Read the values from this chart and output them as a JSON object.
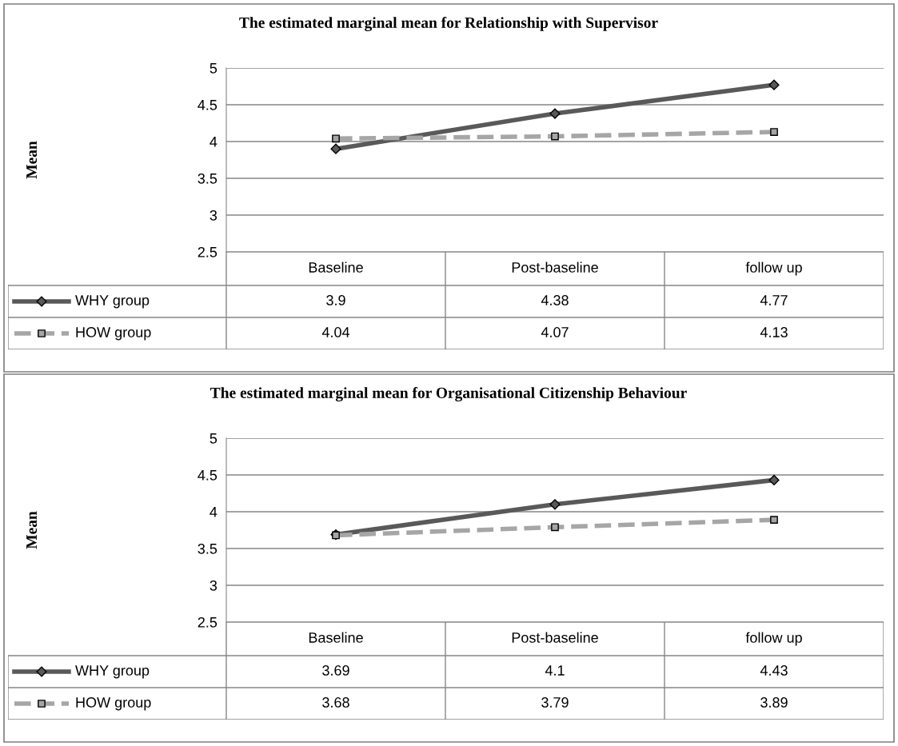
{
  "chart_data": [
    {
      "type": "line",
      "title": "The estimated marginal mean for Relationship with Supervisor",
      "ylabel": "Mean",
      "categories": [
        "Baseline",
        "Post-baseline",
        "follow up"
      ],
      "series": [
        {
          "name": "WHY group",
          "color": "#595959",
          "values": [
            3.9,
            4.38,
            4.77
          ],
          "marker": "diamond",
          "line_style": "solid"
        },
        {
          "name": "HOW group",
          "color": "#a6a6a6",
          "values": [
            4.04,
            4.07,
            4.13
          ],
          "marker": "square",
          "line_style": "dashed"
        }
      ],
      "ylim": [
        2.5,
        5
      ],
      "yticks": [
        2.5,
        3,
        3.5,
        4,
        4.5,
        5
      ],
      "grid": "y",
      "data_labels": true,
      "legend": "bottom left"
    },
    {
      "type": "line",
      "title": "The estimated marginal mean for Organisational Citizenship Behaviour",
      "ylabel": "Mean",
      "categories": [
        "Baseline",
        "Post-baseline",
        "follow up"
      ],
      "series": [
        {
          "name": "WHY group",
          "color": "#595959",
          "values": [
            3.69,
            4.1,
            4.43
          ],
          "marker": "diamond",
          "line_style": "solid"
        },
        {
          "name": "HOW group",
          "color": "#a6a6a6",
          "values": [
            3.68,
            3.79,
            3.89
          ],
          "marker": "square",
          "line_style": "dashed"
        }
      ],
      "ylim": [
        2.5,
        5
      ],
      "yticks": [
        2.5,
        3,
        3.5,
        4,
        4.5,
        5
      ],
      "grid": "y",
      "data_labels": true,
      "legend": "bottom left"
    }
  ]
}
